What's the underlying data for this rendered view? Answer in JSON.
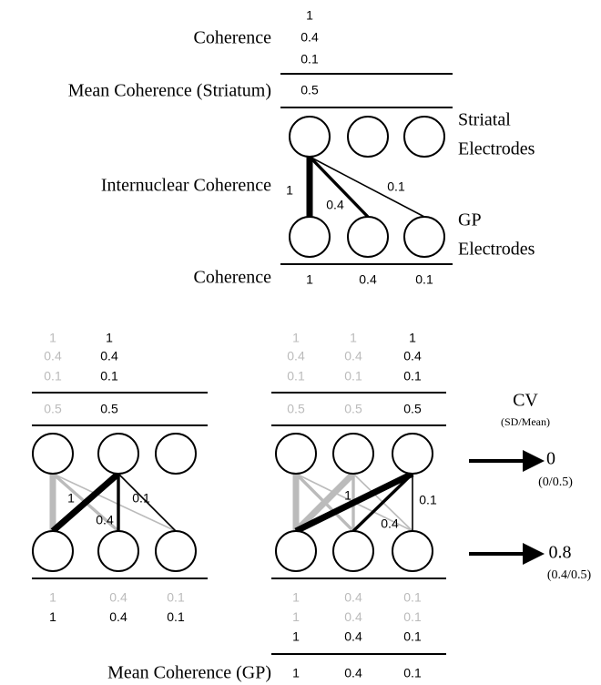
{
  "top": {
    "coherence_label": "Coherence",
    "coherence": [
      1,
      0.4,
      0.1
    ],
    "mean_label": "Mean Coherence (Striatum)",
    "mean": 0.5,
    "striatal_label": [
      "Striatal",
      "Electrodes"
    ],
    "internuclear_label": "Internuclear Coherence",
    "edge_labels": [
      1,
      0.4,
      0.1
    ],
    "gp_label": [
      "GP",
      "Electrodes"
    ],
    "gp_coherence_label": "Coherence",
    "gp_coherence": [
      1,
      0.4,
      0.1
    ]
  },
  "left": {
    "striatal_coherence": [
      [
        1,
        0.4,
        0.1
      ],
      [
        1,
        0.4,
        0.1
      ]
    ],
    "striatal_mean": [
      0.5,
      0.5
    ],
    "edge_labels": [
      1,
      0.4,
      0.1
    ],
    "gp_coherence": [
      [
        1,
        0.4,
        0.1
      ],
      [
        1,
        0.4,
        0.1
      ]
    ]
  },
  "middle": {
    "striatal_coherence": [
      [
        1,
        0.4,
        0.1
      ],
      [
        1,
        0.4,
        0.1
      ],
      [
        1,
        0.4,
        0.1
      ]
    ],
    "striatal_mean": [
      0.5,
      0.5,
      0.5
    ],
    "edge_labels": [
      1,
      0.4,
      0.1
    ],
    "gp_coherence": [
      [
        1,
        0.4,
        0.1
      ],
      [
        1,
        0.4,
        0.1
      ],
      [
        1,
        0.4,
        0.1
      ]
    ],
    "mean_label": "Mean Coherence (GP)",
    "mean": [
      1,
      0.4,
      0.1
    ]
  },
  "cv": {
    "title": "CV",
    "subtitle": "(SD/Mean)",
    "results": [
      {
        "value": 0,
        "formula": "(0/0.5)"
      },
      {
        "value": 0.8,
        "formula": "(0.4/0.5)"
      }
    ]
  }
}
